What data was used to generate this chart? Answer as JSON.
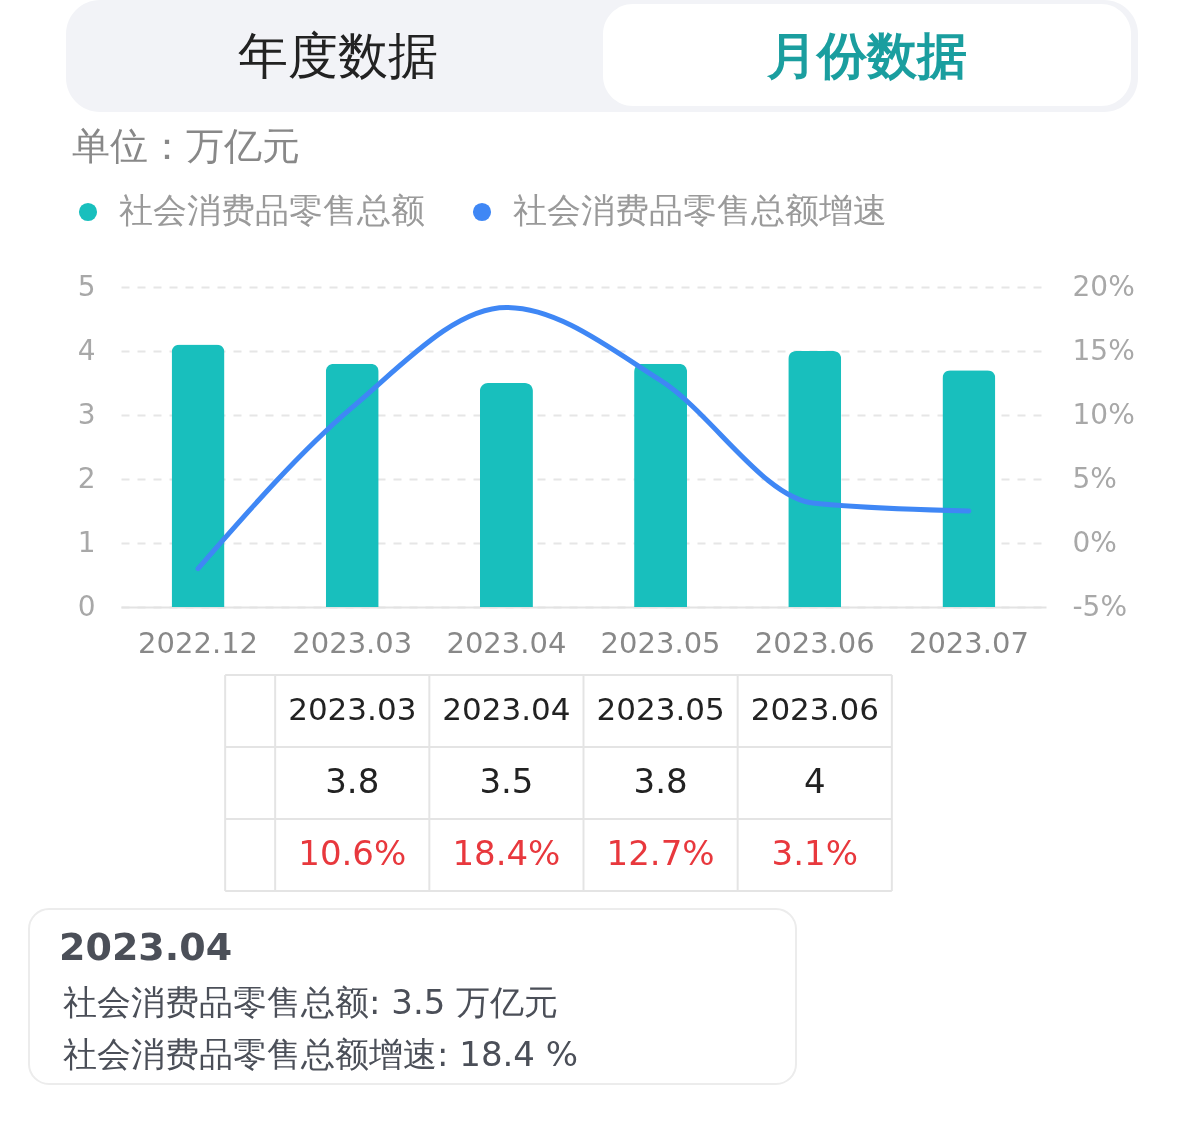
{
  "chart_data": {
    "type": "bar",
    "ylabel": "单位：万亿元",
    "annotations": [
      "年度数据",
      "月份数据",
      "2023.04",
      "社会消费品零售总额: 3.5 万亿元",
      "社会消费品零售总额增速: 18.4 %"
    ],
    "categories": [
      "2022.12",
      "2023.03",
      "2023.04",
      "2023.05",
      "2023.06",
      "2023.07"
    ],
    "series": [
      {
        "name": "社会消费品零售总额",
        "color": "#18bfbd",
        "values": [
          4.1,
          3.8,
          3.5,
          3.8,
          4,
          3.7
        ],
        "value_labels": [
          null,
          "3.8",
          "3.5",
          "3.8",
          "4",
          null
        ]
      },
      {
        "name": "社会消费品零售总额增速",
        "type": "line",
        "axis": "y2",
        "color": "#3f87f5",
        "values": [
          -2,
          10.6,
          18.4,
          12.7,
          3.1,
          2.5
        ],
        "value_labels": [
          null,
          "10.6%",
          "18.4%",
          "12.7%",
          "3.1%",
          null
        ]
      }
    ],
    "ylim": [
      0,
      5
    ],
    "yticks": [
      0,
      1,
      2,
      3,
      4,
      5
    ],
    "y2lim": [
      -5,
      20
    ],
    "y2ticks": [
      {
        "value": -5,
        "label": "-5%"
      },
      {
        "value": 0,
        "label": "0%"
      },
      {
        "value": 5,
        "label": "5%"
      },
      {
        "value": 10,
        "label": "10%"
      },
      {
        "value": 15,
        "label": "15%"
      },
      {
        "value": 20,
        "label": "20%"
      }
    ],
    "grid": "y",
    "legend": "top left",
    "marker": "none",
    "line_style": "solid"
  }
}
